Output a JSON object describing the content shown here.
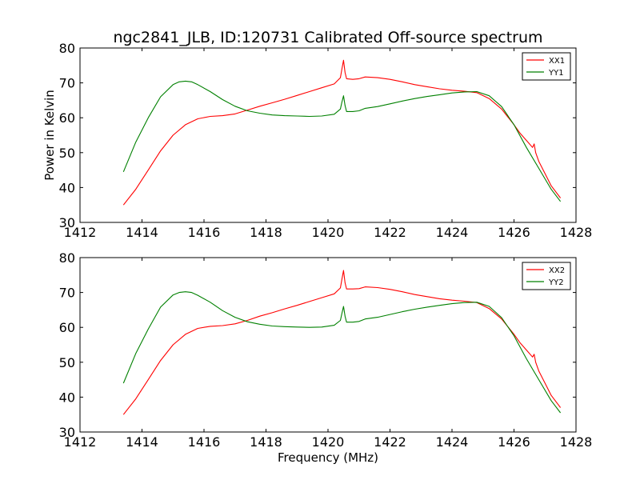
{
  "chart_data": {
    "type": "line",
    "title": "ngc2841_JLB, ID:120731 Calibrated Off-source spectrum",
    "xlabel": "Frequency (MHz)",
    "ylabel": "Power in Kelvin",
    "grid": false,
    "panels": [
      {
        "xlim": [
          1412,
          1428
        ],
        "ylim": [
          30,
          80
        ],
        "xticks": [
          1412,
          1414,
          1416,
          1418,
          1420,
          1422,
          1424,
          1426,
          1428
        ],
        "yticks": [
          30,
          40,
          50,
          60,
          70,
          80
        ],
        "legend_position": "top-right",
        "series": [
          {
            "name": "XX1",
            "color": "#ff0000",
            "x": [
              1413.4,
              1413.8,
              1414.2,
              1414.6,
              1415.0,
              1415.4,
              1415.8,
              1416.2,
              1416.6,
              1417.0,
              1417.4,
              1417.8,
              1418.2,
              1418.6,
              1419.0,
              1419.4,
              1419.8,
              1420.2,
              1420.4,
              1420.45,
              1420.5,
              1420.55,
              1420.6,
              1420.8,
              1421.0,
              1421.2,
              1421.6,
              1422.0,
              1422.4,
              1422.8,
              1423.2,
              1423.6,
              1424.0,
              1424.4,
              1424.8,
              1425.2,
              1425.6,
              1426.0,
              1426.2,
              1426.4,
              1426.6,
              1426.65,
              1426.7,
              1426.8,
              1427.0,
              1427.2,
              1427.5
            ],
            "values": [
              35.0,
              39.5,
              45.0,
              50.5,
              55.0,
              58.0,
              59.7,
              60.4,
              60.6,
              61.1,
              62.2,
              63.3,
              64.3,
              65.3,
              66.4,
              67.5,
              68.6,
              69.7,
              71.5,
              74.0,
              76.5,
              73.0,
              71.2,
              71.0,
              71.2,
              71.7,
              71.5,
              71.0,
              70.3,
              69.5,
              68.9,
              68.3,
              67.9,
              67.6,
              67.2,
              65.5,
              62.5,
              58.0,
              55.5,
              53.5,
              51.5,
              52.5,
              50.0,
              47.5,
              44.0,
              40.5,
              37.0
            ]
          },
          {
            "name": "YY1",
            "color": "#008000",
            "x": [
              1413.4,
              1413.8,
              1414.2,
              1414.6,
              1415.0,
              1415.2,
              1415.4,
              1415.6,
              1415.8,
              1416.2,
              1416.6,
              1417.0,
              1417.4,
              1417.8,
              1418.2,
              1418.6,
              1419.0,
              1419.4,
              1419.8,
              1420.2,
              1420.4,
              1420.45,
              1420.5,
              1420.55,
              1420.6,
              1420.8,
              1421.0,
              1421.2,
              1421.6,
              1422.0,
              1422.4,
              1422.8,
              1423.2,
              1423.6,
              1424.0,
              1424.4,
              1424.8,
              1425.2,
              1425.6,
              1426.0,
              1426.4,
              1426.8,
              1427.2,
              1427.5
            ],
            "values": [
              44.5,
              53.0,
              60.0,
              66.0,
              69.5,
              70.3,
              70.5,
              70.3,
              69.5,
              67.5,
              65.2,
              63.3,
              62.0,
              61.3,
              60.8,
              60.6,
              60.5,
              60.4,
              60.5,
              61.0,
              62.5,
              64.5,
              66.3,
              63.5,
              61.8,
              61.8,
              62.0,
              62.7,
              63.2,
              64.0,
              64.8,
              65.5,
              66.1,
              66.6,
              67.1,
              67.4,
              67.5,
              66.3,
              63.2,
              58.0,
              51.5,
              45.5,
              39.5,
              36.0
            ]
          }
        ]
      },
      {
        "xlim": [
          1412,
          1428
        ],
        "ylim": [
          30,
          80
        ],
        "xticks": [
          1412,
          1414,
          1416,
          1418,
          1420,
          1422,
          1424,
          1426,
          1428
        ],
        "yticks": [
          30,
          40,
          50,
          60,
          70,
          80
        ],
        "legend_position": "top-right",
        "series": [
          {
            "name": "XX2",
            "color": "#ff0000",
            "x": [
              1413.4,
              1413.8,
              1414.2,
              1414.6,
              1415.0,
              1415.4,
              1415.8,
              1416.2,
              1416.6,
              1417.0,
              1417.4,
              1417.8,
              1418.2,
              1418.6,
              1419.0,
              1419.4,
              1419.8,
              1420.2,
              1420.4,
              1420.45,
              1420.5,
              1420.55,
              1420.6,
              1420.8,
              1421.0,
              1421.2,
              1421.6,
              1422.0,
              1422.4,
              1422.8,
              1423.2,
              1423.6,
              1424.0,
              1424.4,
              1424.8,
              1425.2,
              1425.6,
              1426.0,
              1426.2,
              1426.4,
              1426.6,
              1426.65,
              1426.7,
              1426.8,
              1427.0,
              1427.2,
              1427.5
            ],
            "values": [
              35.0,
              39.5,
              45.0,
              50.5,
              55.0,
              58.0,
              59.7,
              60.3,
              60.5,
              61.0,
              62.0,
              63.2,
              64.2,
              65.3,
              66.3,
              67.4,
              68.5,
              69.6,
              71.3,
              73.8,
              76.3,
              72.8,
              71.0,
              71.0,
              71.1,
              71.6,
              71.4,
              70.9,
              70.2,
              69.4,
              68.8,
              68.2,
              67.8,
              67.5,
              67.1,
              65.4,
              62.4,
              58.0,
              55.5,
              53.5,
              51.5,
              52.3,
              50.0,
              47.5,
              44.0,
              40.5,
              37.0
            ]
          },
          {
            "name": "YY2",
            "color": "#008000",
            "x": [
              1413.4,
              1413.8,
              1414.2,
              1414.6,
              1415.0,
              1415.2,
              1415.4,
              1415.6,
              1415.8,
              1416.2,
              1416.6,
              1417.0,
              1417.4,
              1417.8,
              1418.2,
              1418.6,
              1419.0,
              1419.4,
              1419.8,
              1420.2,
              1420.4,
              1420.45,
              1420.5,
              1420.55,
              1420.6,
              1420.8,
              1421.0,
              1421.2,
              1421.6,
              1422.0,
              1422.4,
              1422.8,
              1423.2,
              1423.6,
              1424.0,
              1424.4,
              1424.8,
              1425.2,
              1425.6,
              1426.0,
              1426.4,
              1426.8,
              1427.2,
              1427.5
            ],
            "values": [
              44.0,
              52.5,
              59.5,
              65.8,
              69.3,
              70.0,
              70.2,
              70.0,
              69.2,
              67.2,
              64.8,
              62.9,
              61.6,
              60.9,
              60.4,
              60.2,
              60.1,
              60.0,
              60.1,
              60.6,
              62.0,
              64.0,
              66.0,
              63.2,
              61.5,
              61.5,
              61.7,
              62.4,
              62.9,
              63.7,
              64.5,
              65.2,
              65.8,
              66.3,
              66.8,
              67.1,
              67.2,
              66.0,
              62.8,
              57.6,
              51.0,
              45.0,
              39.0,
              35.5
            ]
          }
        ]
      }
    ]
  }
}
